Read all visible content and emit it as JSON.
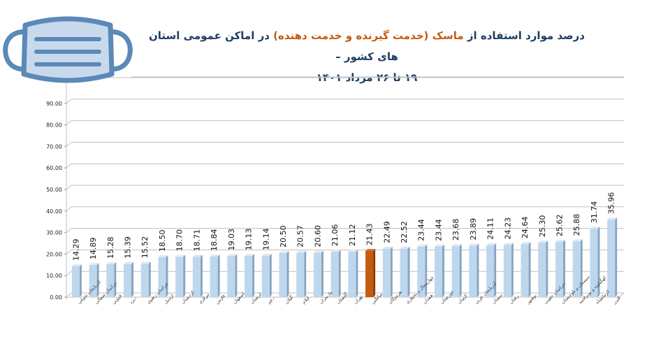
{
  "title": {
    "line1_part1": "درصد موارد استفاده از ",
    "line1_highlight": "ماسک (خدمت گیرنده و خدمت دهنده)",
    "line1_part2": " در اماکن عمومی استان های کشور –",
    "line2": "۱۹ تا ۲۶ مرداد ۱۴۰۱"
  },
  "icons": {
    "logo": "face-mask-icon"
  },
  "colors": {
    "bar": "#bdd7ee",
    "bar_side": "#8aa4bf",
    "highlight_bar": "#c55a11",
    "highlight_side": "#8a3a08",
    "title": "#1f3d63",
    "title_highlight": "#c55a11",
    "grid": "#bfbfbf"
  },
  "chart_data": {
    "type": "bar",
    "title": "درصد موارد استفاده از ماسک (خدمت گیرنده و خدمت دهنده) در اماکن عمومی استان های کشور – ۱۹ تا ۲۶ مرداد ۱۴۰۱",
    "xlabel": "",
    "ylabel": "",
    "ylim": [
      0,
      100
    ],
    "yticks": [
      "0.00",
      "10.00",
      "20.00",
      "30.00",
      "40.00",
      "50.00",
      "60.00",
      "70.00",
      "80.00",
      "90.00"
    ],
    "grid": true,
    "legend": "none",
    "highlight_category": "میانگین",
    "categories": [
      "آذربایجان شرقی",
      "خراسان شمالی",
      "قزوین",
      "یزد",
      "خراسان رضوی",
      "اردبیل",
      "کردستان",
      "مرکزی",
      "فارس",
      "اصفهان",
      "لرستان",
      "قم",
      "گیلان",
      "ایلام",
      "مازندران",
      "گلستان",
      "تهران",
      "میانگین",
      "هرمزگان",
      "چهارمحال و بختیاری",
      "همدان",
      "خوزستان",
      "کرمان",
      "آذربایجان غربی",
      "سمنان",
      "زنجان",
      "بوشهر",
      "خراسان جنوبی",
      "سیستان و بلوچستان",
      "کهگیلویه و بویراحمد",
      "کرمانشاه",
      "البرز"
    ],
    "values": [
      14.29,
      14.89,
      15.28,
      15.39,
      15.52,
      18.5,
      18.7,
      18.71,
      18.84,
      19.03,
      19.13,
      19.14,
      20.5,
      20.57,
      20.6,
      21.06,
      21.12,
      21.43,
      22.49,
      22.52,
      23.44,
      23.44,
      23.68,
      23.89,
      24.11,
      24.23,
      24.64,
      25.3,
      25.62,
      25.88,
      31.74,
      35.96
    ],
    "value_labels": [
      "14.29",
      "14.89",
      "15.28",
      "15.39",
      "15.52",
      "18.50",
      "18.70",
      "18.71",
      "18.84",
      "19.03",
      "19.13",
      "19.14",
      "20.50",
      "20.57",
      "20.60",
      "21.06",
      "21.12",
      "21.43",
      "22.49",
      "22.52",
      "23.44",
      "23.44",
      "23.68",
      "23.89",
      "24.11",
      "24.23",
      "24.64",
      "25.30",
      "25.62",
      "25.88",
      "31.74",
      "35.96"
    ]
  }
}
